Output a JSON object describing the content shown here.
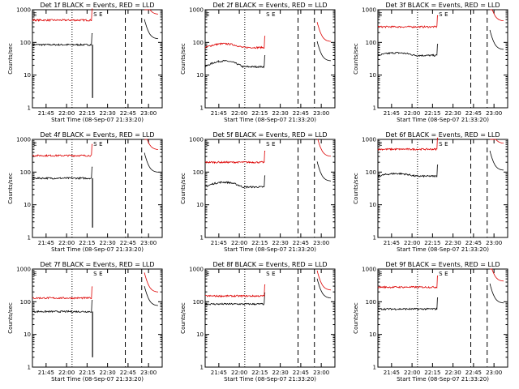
{
  "figure": {
    "x_tick_labels": [
      "21:45",
      "22:00",
      "22:15",
      "22:30",
      "22:45",
      "23:00"
    ],
    "y_tick_labels": [
      "1",
      "10",
      "100",
      "1000"
    ],
    "ylabel": "Counts/sec",
    "xlabel": "Start Time (08-Sep-07 21:33:20)",
    "marker_labels": [
      "E",
      "S",
      "E"
    ],
    "colors": {
      "events": "#000000",
      "lld": "#dd0000"
    }
  },
  "chart_data": [
    {
      "type": "line",
      "title": "Det 1f BLACK = Events, RED = LLD",
      "xlabel": "Start Time (08-Sep-07 21:33:20)",
      "ylabel": "Counts/sec",
      "yscale": "log",
      "ylim": [
        1,
        1000
      ],
      "xlim_minutes_after_start": [
        0,
        95
      ],
      "series": [
        {
          "name": "Events",
          "color": "#000000",
          "level": 85,
          "dip_at_minute": 44,
          "dip_to": 2
        },
        {
          "name": "LLD",
          "color": "#dd0000",
          "level": 480
        }
      ],
      "markers": [
        {
          "label": "E",
          "style": "dotted",
          "minute": 29
        },
        {
          "label": "S",
          "style": "dashed",
          "minute": 68
        },
        {
          "label": "E",
          "style": "dashed",
          "minute": 80
        }
      ]
    },
    {
      "type": "line",
      "title": "Det 2f BLACK = Events, RED = LLD",
      "xlabel": "Start Time (08-Sep-07 21:33:20)",
      "ylabel": "Counts/sec",
      "yscale": "log",
      "ylim": [
        1,
        1000
      ],
      "xlim_minutes_after_start": [
        0,
        95
      ],
      "series": [
        {
          "name": "Events",
          "color": "#000000",
          "level": 18,
          "bump": 1.5
        },
        {
          "name": "LLD",
          "color": "#dd0000",
          "level": 70,
          "bump": 1.3
        }
      ],
      "markers": [
        {
          "label": "E",
          "style": "dotted",
          "minute": 29
        },
        {
          "label": "S",
          "style": "dashed",
          "minute": 68
        },
        {
          "label": "E",
          "style": "dashed",
          "minute": 80
        }
      ]
    },
    {
      "type": "line",
      "title": "Det 3f BLACK = Events, RED = LLD",
      "xlabel": "Start Time (08-Sep-07 21:33:20)",
      "ylabel": "Counts/sec",
      "yscale": "log",
      "ylim": [
        1,
        1000
      ],
      "xlim_minutes_after_start": [
        0,
        95
      ],
      "series": [
        {
          "name": "Events",
          "color": "#000000",
          "level": 40,
          "bump": 1.2
        },
        {
          "name": "LLD",
          "color": "#dd0000",
          "level": 300
        }
      ],
      "markers": [
        {
          "label": "E",
          "style": "dotted",
          "minute": 29
        },
        {
          "label": "S",
          "style": "dashed",
          "minute": 68
        },
        {
          "label": "E",
          "style": "dashed",
          "minute": 80
        }
      ]
    },
    {
      "type": "line",
      "title": "Det 4f BLACK = Events, RED = LLD",
      "xlabel": "Start Time (08-Sep-07 21:33:20)",
      "ylabel": "Counts/sec",
      "yscale": "log",
      "ylim": [
        1,
        1000
      ],
      "xlim_minutes_after_start": [
        0,
        95
      ],
      "series": [
        {
          "name": "Events",
          "color": "#000000",
          "level": 65,
          "dip_at_minute": 44,
          "dip_to": 2
        },
        {
          "name": "LLD",
          "color": "#dd0000",
          "level": 320
        }
      ],
      "markers": [
        {
          "label": "E",
          "style": "dotted",
          "minute": 29
        },
        {
          "label": "S",
          "style": "dashed",
          "minute": 68
        },
        {
          "label": "E",
          "style": "dashed",
          "minute": 80
        }
      ]
    },
    {
      "type": "line",
      "title": "Det 5f BLACK = Events, RED = LLD",
      "xlabel": "Start Time (08-Sep-07 21:33:20)",
      "ylabel": "Counts/sec",
      "yscale": "log",
      "ylim": [
        1,
        1000
      ],
      "xlim_minutes_after_start": [
        0,
        95
      ],
      "series": [
        {
          "name": "Events",
          "color": "#000000",
          "level": 35,
          "bump": 1.4
        },
        {
          "name": "LLD",
          "color": "#dd0000",
          "level": 200
        }
      ],
      "markers": [
        {
          "label": "E",
          "style": "dotted",
          "minute": 29
        },
        {
          "label": "S",
          "style": "dashed",
          "minute": 68
        },
        {
          "label": "E",
          "style": "dashed",
          "minute": 80
        }
      ]
    },
    {
      "type": "line",
      "title": "Det 6f BLACK = Events, RED = LLD",
      "xlabel": "Start Time (08-Sep-07 21:33:20)",
      "ylabel": "Counts/sec",
      "yscale": "log",
      "ylim": [
        1,
        1000
      ],
      "xlim_minutes_after_start": [
        0,
        95
      ],
      "series": [
        {
          "name": "Events",
          "color": "#000000",
          "level": 75,
          "bump": 1.2
        },
        {
          "name": "LLD",
          "color": "#dd0000",
          "level": 500
        }
      ],
      "markers": [
        {
          "label": "E",
          "style": "dotted",
          "minute": 29
        },
        {
          "label": "S",
          "style": "dashed",
          "minute": 68
        },
        {
          "label": "E",
          "style": "dashed",
          "minute": 80
        }
      ]
    },
    {
      "type": "line",
      "title": "Det 7f BLACK = Events, RED = LLD",
      "xlabel": "Start Time (08-Sep-07 21:33:20)",
      "ylabel": "Counts/sec",
      "yscale": "log",
      "ylim": [
        1,
        1000
      ],
      "xlim_minutes_after_start": [
        0,
        95
      ],
      "series": [
        {
          "name": "Events",
          "color": "#000000",
          "level": 50,
          "dip_at_minute": 44,
          "dip_to": 2
        },
        {
          "name": "LLD",
          "color": "#dd0000",
          "level": 130
        }
      ],
      "markers": [
        {
          "label": "E",
          "style": "dotted",
          "minute": 29
        },
        {
          "label": "S",
          "style": "dashed",
          "minute": 68
        },
        {
          "label": "E",
          "style": "dashed",
          "minute": 80
        }
      ]
    },
    {
      "type": "line",
      "title": "Det 8f BLACK = Events, RED = LLD",
      "xlabel": "Start Time (08-Sep-07 21:33:20)",
      "ylabel": "Counts/sec",
      "yscale": "log",
      "ylim": [
        1,
        1000
      ],
      "xlim_minutes_after_start": [
        0,
        95
      ],
      "series": [
        {
          "name": "Events",
          "color": "#000000",
          "level": 85
        },
        {
          "name": "LLD",
          "color": "#dd0000",
          "level": 150
        }
      ],
      "markers": [
        {
          "label": "E",
          "style": "dotted",
          "minute": 29
        },
        {
          "label": "S",
          "style": "dashed",
          "minute": 68
        },
        {
          "label": "E",
          "style": "dashed",
          "minute": 80
        }
      ]
    },
    {
      "type": "line",
      "title": "Det 9f BLACK = Events, RED = LLD",
      "xlabel": "Start Time (08-Sep-07 21:33:20)",
      "ylabel": "Counts/sec",
      "yscale": "log",
      "ylim": [
        1,
        1000
      ],
      "xlim_minutes_after_start": [
        0,
        95
      ],
      "series": [
        {
          "name": "Events",
          "color": "#000000",
          "level": 60
        },
        {
          "name": "LLD",
          "color": "#dd0000",
          "level": 280
        }
      ],
      "markers": [
        {
          "label": "E",
          "style": "dotted",
          "minute": 29
        },
        {
          "label": "S",
          "style": "dashed",
          "minute": 68
        },
        {
          "label": "E",
          "style": "dashed",
          "minute": 80
        }
      ]
    }
  ]
}
